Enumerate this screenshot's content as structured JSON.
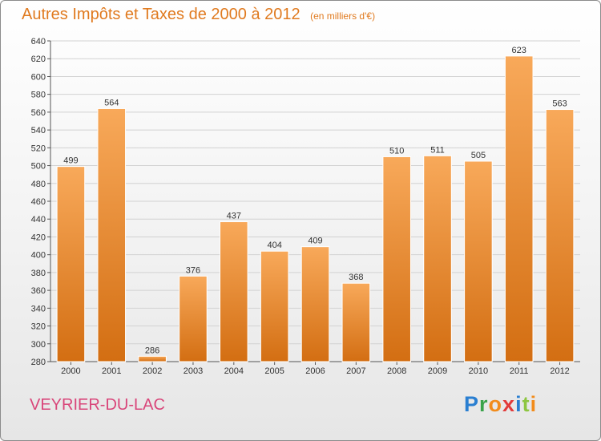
{
  "header": {
    "title": "Autres Impôts et Taxes de 2000 à 2012",
    "subtitle": "(en milliers d'€)"
  },
  "commune": "VEYRIER-DU-LAC",
  "logo": {
    "letters": [
      "P",
      "r",
      "o",
      "x",
      "i",
      "t",
      "i"
    ],
    "colors": [
      "#2a7fd1",
      "#3aa34a",
      "#f28c1c",
      "#e23b3b",
      "#2a7fd1",
      "#8ec641",
      "#f28c1c"
    ]
  },
  "colors": {
    "title": "#e07a1f",
    "bar_light": "#f8a95a",
    "bar_dark": "#d36e12",
    "commune": "#d9467a"
  },
  "chart_data": {
    "type": "bar",
    "categories": [
      "2000",
      "2001",
      "2002",
      "2003",
      "2004",
      "2005",
      "2006",
      "2007",
      "2008",
      "2009",
      "2010",
      "2011",
      "2012"
    ],
    "values": [
      499,
      564,
      286,
      376,
      437,
      404,
      409,
      368,
      510,
      511,
      505,
      623,
      563
    ],
    "ylim": [
      280,
      640
    ],
    "yticks": [
      280,
      300,
      320,
      340,
      360,
      380,
      400,
      420,
      440,
      460,
      480,
      500,
      520,
      540,
      560,
      580,
      600,
      620,
      640
    ],
    "grid": true,
    "data_labels": true
  }
}
